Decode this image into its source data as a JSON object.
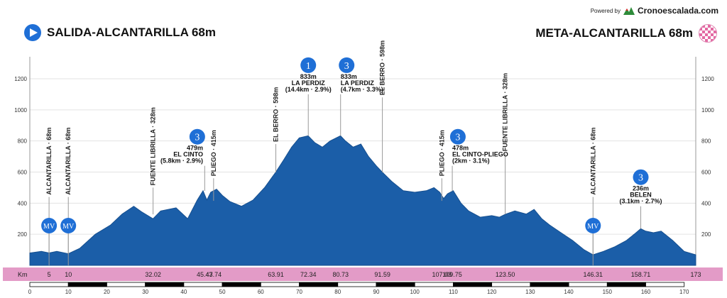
{
  "header": {
    "powered_by": "Powered by",
    "brand_name": "Cronoescalada.com",
    "start_label": "SALIDA-ALCANTARILLA 68m",
    "finish_label": "META-ALCANTARILLA 68m"
  },
  "chart_data": {
    "type": "area",
    "title": "",
    "xlabel": "Km",
    "ylabel": "",
    "xlim": [
      0,
      173
    ],
    "ylim": [
      0,
      1400
    ],
    "y_ticks": [
      200,
      400,
      600,
      800,
      1000,
      1200
    ],
    "x_ticks": [
      0,
      10,
      20,
      30,
      40,
      50,
      60,
      70,
      80,
      90,
      100,
      110,
      120,
      130,
      140,
      150,
      160,
      170
    ],
    "colors": {
      "fill": "#1b5ea8",
      "band": "#e39bc7",
      "marker": "#1f6fd6",
      "gray_line": "#999999"
    },
    "profile": {
      "x": [
        0,
        3,
        5,
        7,
        10,
        13,
        17,
        21,
        24,
        27,
        29,
        32,
        34,
        38,
        41,
        43.5,
        45,
        46,
        47,
        48.5,
        50,
        52,
        55,
        58,
        61,
        63.9,
        66,
        68,
        70,
        72.3,
        74,
        76,
        78,
        80.7,
        82,
        84,
        86,
        88,
        90,
        91.6,
        94,
        97,
        100,
        103,
        105,
        106.5,
        107.5,
        108.5,
        110,
        112,
        114,
        117,
        120,
        122,
        123.5,
        126,
        129,
        131,
        133,
        135,
        138,
        141,
        144,
        146.3,
        149,
        152,
        155,
        157,
        158.7,
        160,
        162,
        164,
        167,
        170,
        173
      ],
      "y": [
        80,
        90,
        80,
        90,
        75,
        110,
        200,
        260,
        330,
        380,
        345,
        300,
        350,
        370,
        300,
        420,
        480,
        420,
        470,
        490,
        450,
        410,
        380,
        420,
        500,
        600,
        680,
        760,
        820,
        833,
        790,
        760,
        800,
        833,
        800,
        760,
        780,
        700,
        640,
        598,
        540,
        480,
        470,
        480,
        500,
        470,
        430,
        460,
        480,
        400,
        350,
        310,
        320,
        310,
        328,
        350,
        330,
        360,
        300,
        260,
        210,
        160,
        100,
        68,
        90,
        120,
        160,
        200,
        236,
        220,
        210,
        220,
        160,
        90,
        68
      ]
    },
    "km_labels": [
      "5",
      "10",
      "32.02",
      "45.43",
      "47.74",
      "63.91",
      "72.34",
      "80.73",
      "91.59",
      "107.03",
      "109.75",
      "123.50",
      "146.31",
      "158.71",
      "173"
    ],
    "km_values": [
      5,
      10,
      32.02,
      45.43,
      47.74,
      63.91,
      72.34,
      80.73,
      91.59,
      107.03,
      109.75,
      123.5,
      146.31,
      158.71,
      173
    ],
    "waypoints": [
      {
        "km": 5,
        "elev": 68,
        "label": "ALCANTARILLA · 68m",
        "top_elev": 440
      },
      {
        "km": 10,
        "elev": 68,
        "label": "ALCANTARILLA · 68m",
        "top_elev": 440
      },
      {
        "km": 32.02,
        "elev": 328,
        "label": "FUENTE LIBRILLA · 328m",
        "top_elev": 500
      },
      {
        "km": 47.74,
        "elev": 415,
        "label": "PLIEGO · 415m",
        "top_elev": 560
      },
      {
        "km": 63.91,
        "elev": 598,
        "label": "EL BERRO · 598m",
        "top_elev": 780
      },
      {
        "km": 91.59,
        "elev": 598,
        "label": "EL BERRO · 598m",
        "top_elev": 1080
      },
      {
        "km": 107.03,
        "elev": 415,
        "label": "PLIEGO · 415m",
        "top_elev": 560
      },
      {
        "km": 123.5,
        "elev": 328,
        "label": "FUENTE LIBRILLA · 328m",
        "top_elev": 720
      },
      {
        "km": 146.31,
        "elev": 68,
        "label": "ALCANTARILLA · 68m",
        "top_elev": 440
      }
    ],
    "climbs": [
      {
        "km": 45.43,
        "elev": 479,
        "category": "3",
        "lines": [
          "479m",
          "EL CINTO",
          "(5.8km · 2.9%)"
        ],
        "top_elev": 640,
        "align": "end",
        "label_x": 45,
        "badge_x": 43.5
      },
      {
        "km": 72.34,
        "elev": 833,
        "category": "1",
        "lines": [
          "833m",
          "LA PERDIZ",
          "(14.4km · 2.9%)"
        ],
        "top_elev": 1100,
        "align": "middle",
        "label_x": 72.34,
        "badge_x": 72.34
      },
      {
        "km": 80.73,
        "elev": 833,
        "category": "3",
        "lines": [
          "833m",
          "LA PERDIZ",
          "(4.7km · 3.3%)"
        ],
        "top_elev": 1100,
        "align": "start",
        "label_x": 80.73,
        "badge_x": 82.3
      },
      {
        "km": 109.75,
        "elev": 478,
        "category": "3",
        "lines": [
          "478m",
          "EL CINTO-PLIEGO",
          "(2km · 3.1%)"
        ],
        "top_elev": 640,
        "align": "start",
        "label_x": 109.75,
        "badge_x": 111.2
      },
      {
        "km": 158.71,
        "elev": 236,
        "category": "3",
        "lines": [
          "236m",
          "BELEN",
          "(3.1km · 2.7%)"
        ],
        "top_elev": 380,
        "align": "middle",
        "label_x": 158.71,
        "badge_x": 158.71
      }
    ],
    "mv_markers": [
      {
        "km": 5,
        "label": "MV"
      },
      {
        "km": 10,
        "label": "MV"
      },
      {
        "km": 146.31,
        "label": "MV"
      }
    ]
  }
}
